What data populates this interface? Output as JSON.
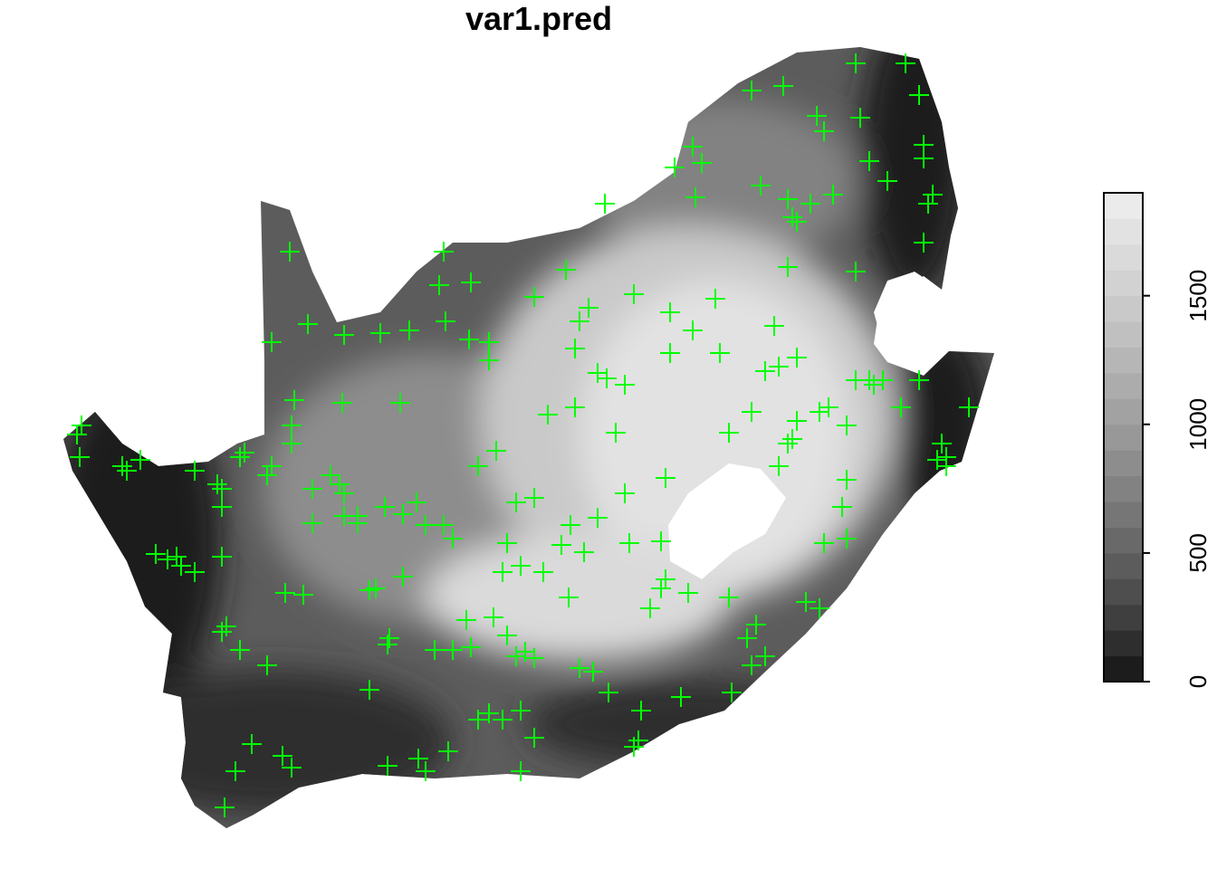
{
  "title": "var1.pred",
  "chart_data": {
    "type": "heatmap",
    "variable": "var1.pred",
    "colorbar": {
      "min": 0,
      "max": 1900,
      "breaks": [
        0,
        100,
        200,
        300,
        400,
        500,
        600,
        700,
        800,
        900,
        1000,
        1100,
        1200,
        1300,
        1400,
        1500,
        1600,
        1700,
        1800,
        1900
      ],
      "colors": [
        "#1c1c1c",
        "#2e2e2e",
        "#3f3f3f",
        "#4e4e4e",
        "#5c5c5c",
        "#696969",
        "#767676",
        "#828282",
        "#8d8d8d",
        "#989898",
        "#a2a2a2",
        "#acacac",
        "#b6b6b6",
        "#c0c0c0",
        "#c9c9c9",
        "#d2d2d2",
        "#dadada",
        "#e2e2e2",
        "#ebebeb"
      ],
      "ticks": [
        0,
        500,
        1000,
        1500
      ],
      "tick_labels": [
        "0",
        "500",
        "1000",
        "1500"
      ]
    },
    "marker_color": "#00ff00",
    "marker_symbol": "plus"
  }
}
